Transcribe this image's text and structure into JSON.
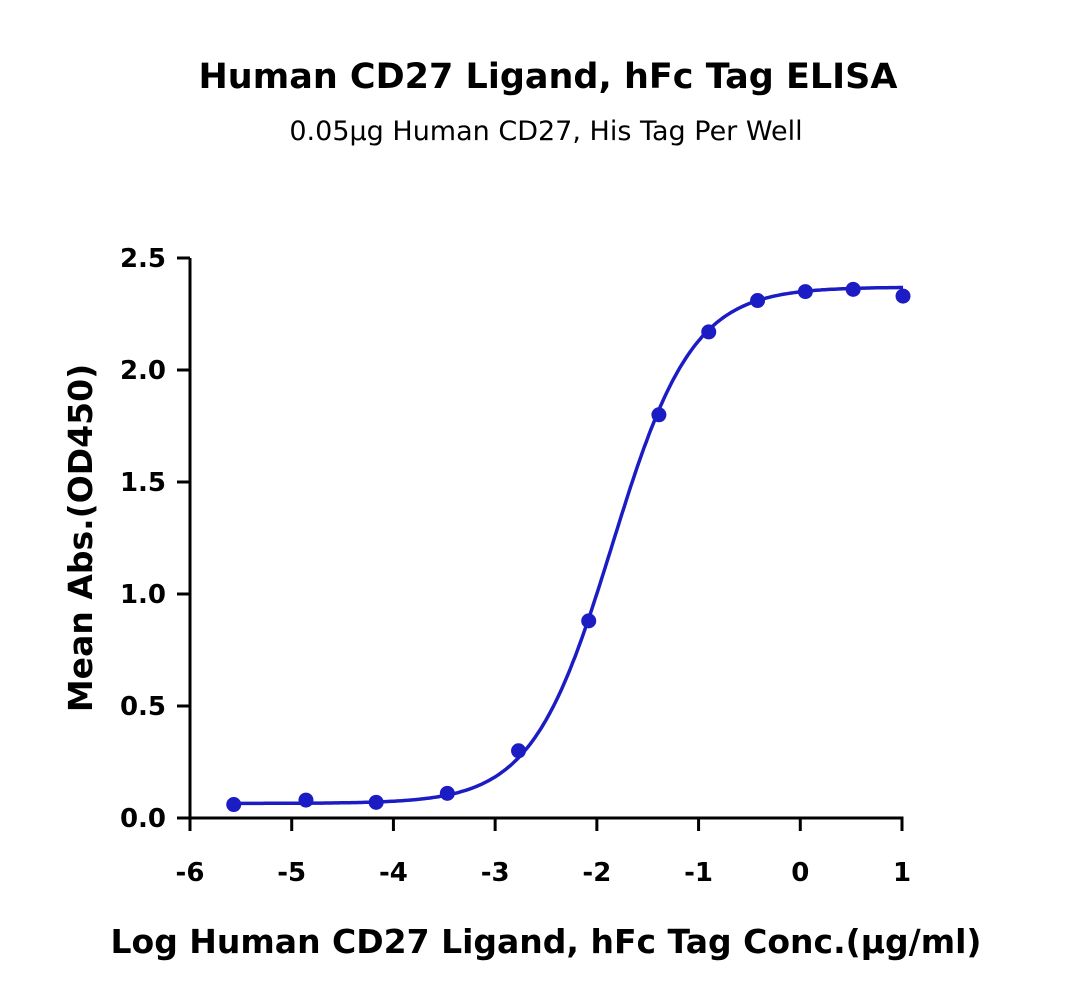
{
  "chart_data": {
    "type": "scatter",
    "title": "Human CD27 Ligand, hFc Tag ELISA",
    "subtitle": "0.05μg Human CD27, His Tag Per Well",
    "xlabel": "Log Human CD27 Ligand, hFc Tag Conc.(μg/ml)",
    "ylabel": "Mean Abs.(OD450)",
    "xlim": [
      -6,
      1
    ],
    "ylim": [
      0,
      2.5
    ],
    "xticks": [
      "-6",
      "-5",
      "-4",
      "-3",
      "-2",
      "-1",
      "0",
      "1"
    ],
    "yticks": [
      "0.0",
      "0.5",
      "1.0",
      "1.5",
      "2.0",
      "2.5"
    ],
    "grid": false,
    "fit_curve": "sigmoidal",
    "color": "#1c1cc4",
    "series": [
      {
        "x": [
          -5.57,
          -4.86,
          -4.17,
          -3.47,
          -2.77,
          -2.08,
          -1.39,
          -0.9,
          -0.42,
          0.05,
          0.52,
          1.01
        ],
        "y": [
          0.06,
          0.08,
          0.07,
          0.11,
          0.3,
          0.88,
          1.8,
          2.17,
          2.31,
          2.35,
          2.36,
          2.33
        ]
      }
    ]
  }
}
